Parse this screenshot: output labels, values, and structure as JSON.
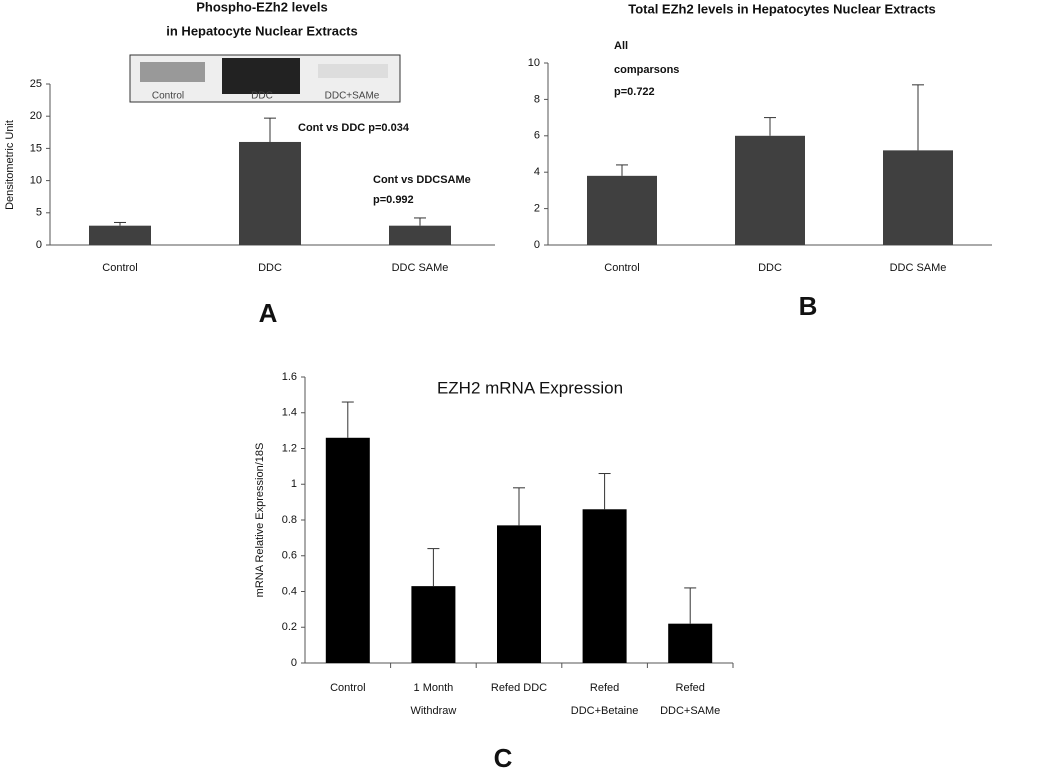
{
  "chart_data": [
    {
      "type": "bar",
      "panel": "A",
      "title": [
        "Phospho-EZh2 levels",
        "in Hepatocyte Nuclear Extracts"
      ],
      "ylabel": "Densitometric Unit",
      "categories": [
        [
          "Control"
        ],
        [
          "DDC"
        ],
        [
          "DDC SAMe"
        ]
      ],
      "values": [
        3,
        16,
        3
      ],
      "errors": [
        0.5,
        3.7,
        1.2
      ],
      "color": "#404040",
      "ylim": [
        0,
        25
      ],
      "yticks": [
        0,
        5,
        10,
        15,
        20,
        25
      ],
      "blot_labels": [
        "Control",
        "DDC",
        "DDC+SAMe"
      ],
      "annotations": [
        "Cont vs DDC p=0.034",
        "Cont vs DDCSAMe",
        "p=0.992"
      ]
    },
    {
      "type": "bar",
      "panel": "B",
      "title": [
        "Total EZh2 levels  in Hepatocytes Nuclear Extracts"
      ],
      "categories": [
        [
          "Control"
        ],
        [
          "DDC"
        ],
        [
          "DDC SAMe"
        ]
      ],
      "values": [
        3.8,
        6.0,
        5.2
      ],
      "errors": [
        0.6,
        1.0,
        3.6
      ],
      "color": "#404040",
      "ylim": [
        0,
        10
      ],
      "yticks": [
        0,
        2,
        4,
        6,
        8,
        10
      ],
      "annotations": [
        "All",
        "comparsons",
        "p=0.722"
      ]
    },
    {
      "type": "bar",
      "panel": "C",
      "title": [
        "EZH2 mRNA Expression"
      ],
      "ylabel": "mRNA Relative Expression/18S",
      "categories": [
        [
          "Control"
        ],
        [
          "1 Month",
          "Withdraw"
        ],
        [
          "Refed DDC"
        ],
        [
          "Refed",
          "DDC+Betaine"
        ],
        [
          "Refed",
          "DDC+SAMe"
        ]
      ],
      "values": [
        1.26,
        0.43,
        0.77,
        0.86,
        0.22
      ],
      "errors": [
        0.2,
        0.21,
        0.21,
        0.2,
        0.2
      ],
      "color": "#000000",
      "ylim": [
        0,
        1.6
      ],
      "yticks": [
        0,
        0.2,
        0.4,
        0.6,
        0.8,
        1,
        1.2,
        1.4,
        1.6
      ]
    }
  ]
}
